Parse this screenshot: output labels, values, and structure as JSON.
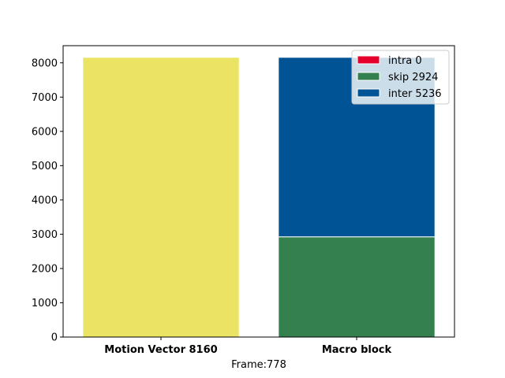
{
  "chart_data": {
    "type": "bar",
    "stacked": true,
    "categories": [
      "Motion Vector 8160",
      "Macro block"
    ],
    "xlabel": "Frame:778",
    "ylabel": "",
    "ylim": [
      0,
      8500
    ],
    "yticks": [
      0,
      1000,
      2000,
      3000,
      4000,
      5000,
      6000,
      7000,
      8000
    ],
    "grid": false,
    "legend_position": "top-right",
    "series": [
      {
        "category": "Motion Vector 8160",
        "values": [
          8160,
          0
        ],
        "color": "#EBE364"
      },
      {
        "name": "intra 0",
        "values": [
          0,
          0
        ],
        "color": "#E4002B"
      },
      {
        "name": "skip 2924",
        "values": [
          0,
          2924
        ],
        "color": "#34804F"
      },
      {
        "name": "inter 5236",
        "values": [
          0,
          5236
        ],
        "color": "#005495"
      }
    ]
  }
}
